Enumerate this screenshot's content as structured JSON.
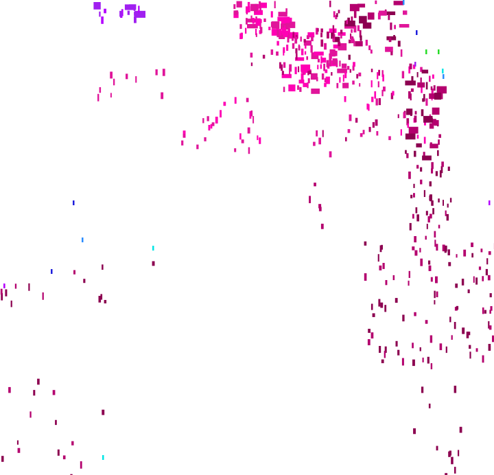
{
  "map": {
    "background": "#ffffff",
    "palette": {
      "hot_pink": "#ff00b4",
      "magenta": "#e0159a",
      "crimson_magenta": "#b4006e",
      "dark_magenta": "#8c0050",
      "violet": "#b400ff",
      "purple": "#a020f0",
      "blue": "#1e1edc",
      "sky_blue": "#2a8cff",
      "cyan": "#00e6e6",
      "green": "#28dc28"
    }
  }
}
